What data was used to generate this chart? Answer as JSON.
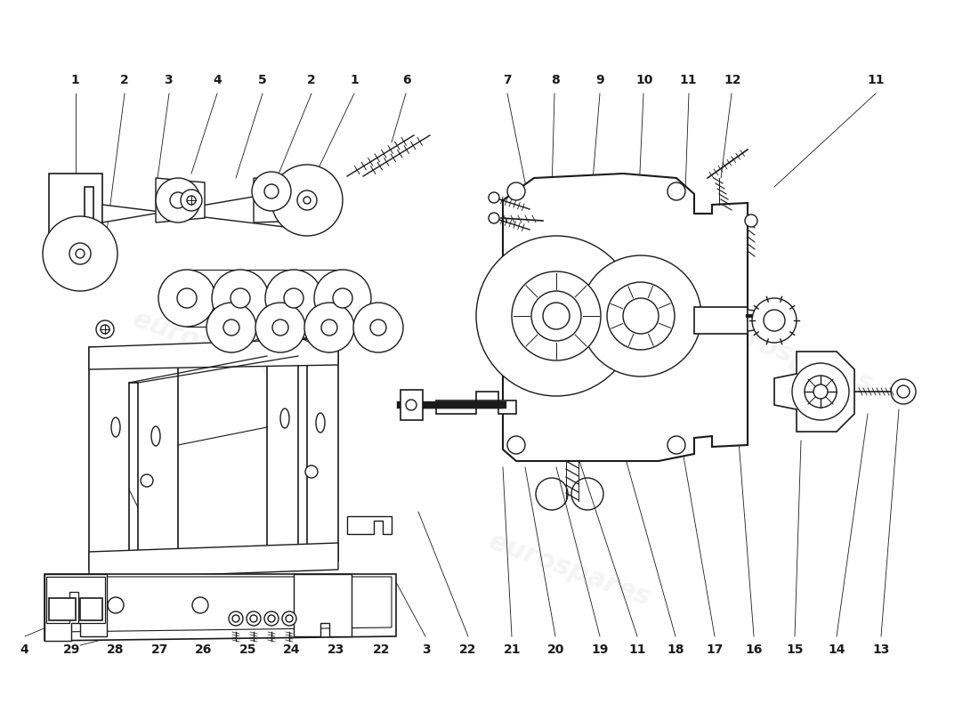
{
  "bg_color": "#ffffff",
  "line_color": "#1a1a1a",
  "watermark_color": "#cccccc",
  "watermark_text": "eurospares",
  "fig_width": 11.0,
  "fig_height": 8.0,
  "font_size": 10,
  "top_labels": [
    [
      0.077,
      "1"
    ],
    [
      0.127,
      "2"
    ],
    [
      0.172,
      "3"
    ],
    [
      0.222,
      "4"
    ],
    [
      0.268,
      "5"
    ],
    [
      0.318,
      "2"
    ],
    [
      0.362,
      "1"
    ],
    [
      0.415,
      "6"
    ],
    [
      0.518,
      "7"
    ],
    [
      0.567,
      "8"
    ],
    [
      0.613,
      "9"
    ],
    [
      0.658,
      "10"
    ],
    [
      0.703,
      "11"
    ],
    [
      0.748,
      "12"
    ],
    [
      0.895,
      "11"
    ]
  ],
  "bottom_labels": [
    [
      0.025,
      "4"
    ],
    [
      0.073,
      "29"
    ],
    [
      0.118,
      "28"
    ],
    [
      0.163,
      "27"
    ],
    [
      0.208,
      "26"
    ],
    [
      0.253,
      "25"
    ],
    [
      0.298,
      "24"
    ],
    [
      0.343,
      "23"
    ],
    [
      0.39,
      "22"
    ],
    [
      0.435,
      "3"
    ],
    [
      0.478,
      "22"
    ],
    [
      0.523,
      "21"
    ],
    [
      0.568,
      "20"
    ],
    [
      0.613,
      "19"
    ],
    [
      0.651,
      "11"
    ],
    [
      0.69,
      "18"
    ],
    [
      0.73,
      "17"
    ],
    [
      0.77,
      "16"
    ],
    [
      0.812,
      "15"
    ],
    [
      0.855,
      "14"
    ],
    [
      0.9,
      "13"
    ]
  ]
}
